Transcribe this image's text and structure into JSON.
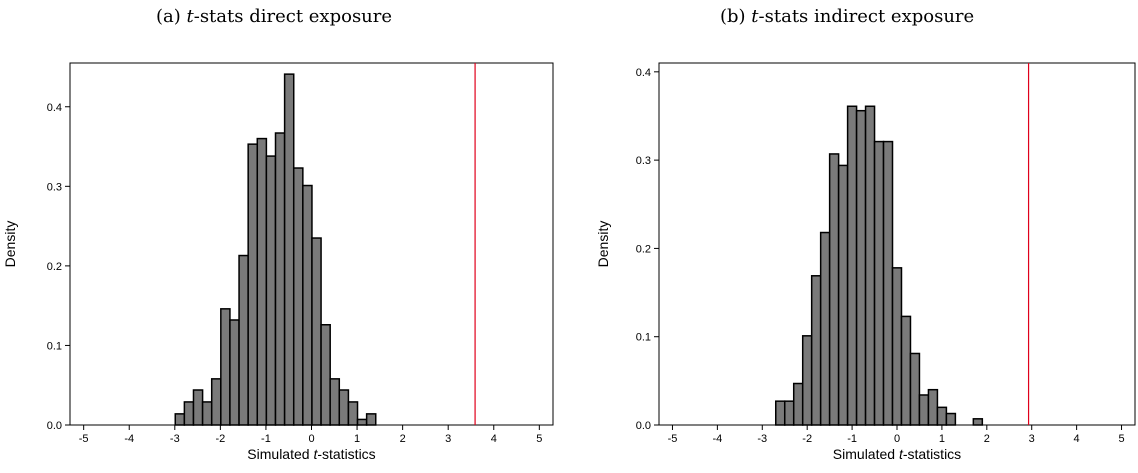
{
  "chart_data": [
    {
      "type": "bar",
      "title_prefix": "(a) ",
      "title_italic": "t",
      "title_suffix": "-stats direct exposure",
      "xlabel_prefix": "Simulated ",
      "xlabel_italic": "t",
      "xlabel_suffix": "-statistics",
      "ylabel": "Density",
      "xlim": [
        -5.3,
        5.3
      ],
      "ylim": [
        0,
        0.455
      ],
      "xticks": [
        -5,
        -4,
        -3,
        -2,
        -1,
        0,
        1,
        2,
        3,
        4,
        5
      ],
      "yticks": [
        0.0,
        0.1,
        0.2,
        0.3,
        0.4
      ],
      "bin_start": -2.99,
      "bin_width": 0.2,
      "values": [
        0.014,
        0.029,
        0.044,
        0.029,
        0.058,
        0.146,
        0.132,
        0.213,
        0.353,
        0.36,
        0.338,
        0.367,
        0.441,
        0.323,
        0.301,
        0.235,
        0.126,
        0.058,
        0.044,
        0.029,
        0.007,
        0.014
      ],
      "vline": 3.59,
      "bar_color": "#7a7a7a",
      "vline_color": "#e0001b",
      "grid": false
    },
    {
      "type": "bar",
      "title_prefix": "(b) ",
      "title_italic": "t",
      "title_suffix": "-stats indirect exposure",
      "xlabel_prefix": "Simulated ",
      "xlabel_italic": "t",
      "xlabel_suffix": "-statistics",
      "ylabel": "Density",
      "xlim": [
        -5.3,
        5.3
      ],
      "ylim": [
        0,
        0.41
      ],
      "xticks": [
        -5,
        -4,
        -3,
        -2,
        -1,
        0,
        1,
        2,
        3,
        4,
        5
      ],
      "yticks": [
        0.0,
        0.1,
        0.2,
        0.3,
        0.4
      ],
      "bin_start": -2.7,
      "bin_width": 0.2,
      "values": [
        0.027,
        0.027,
        0.047,
        0.101,
        0.169,
        0.218,
        0.307,
        0.294,
        0.361,
        0.356,
        0.361,
        0.321,
        0.321,
        0.178,
        0.123,
        0.081,
        0.034,
        0.04,
        0.02,
        0.013,
        0.0,
        0.0,
        0.007
      ],
      "vline": 2.93,
      "bar_color": "#7a7a7a",
      "vline_color": "#e0001b",
      "grid": false
    }
  ]
}
